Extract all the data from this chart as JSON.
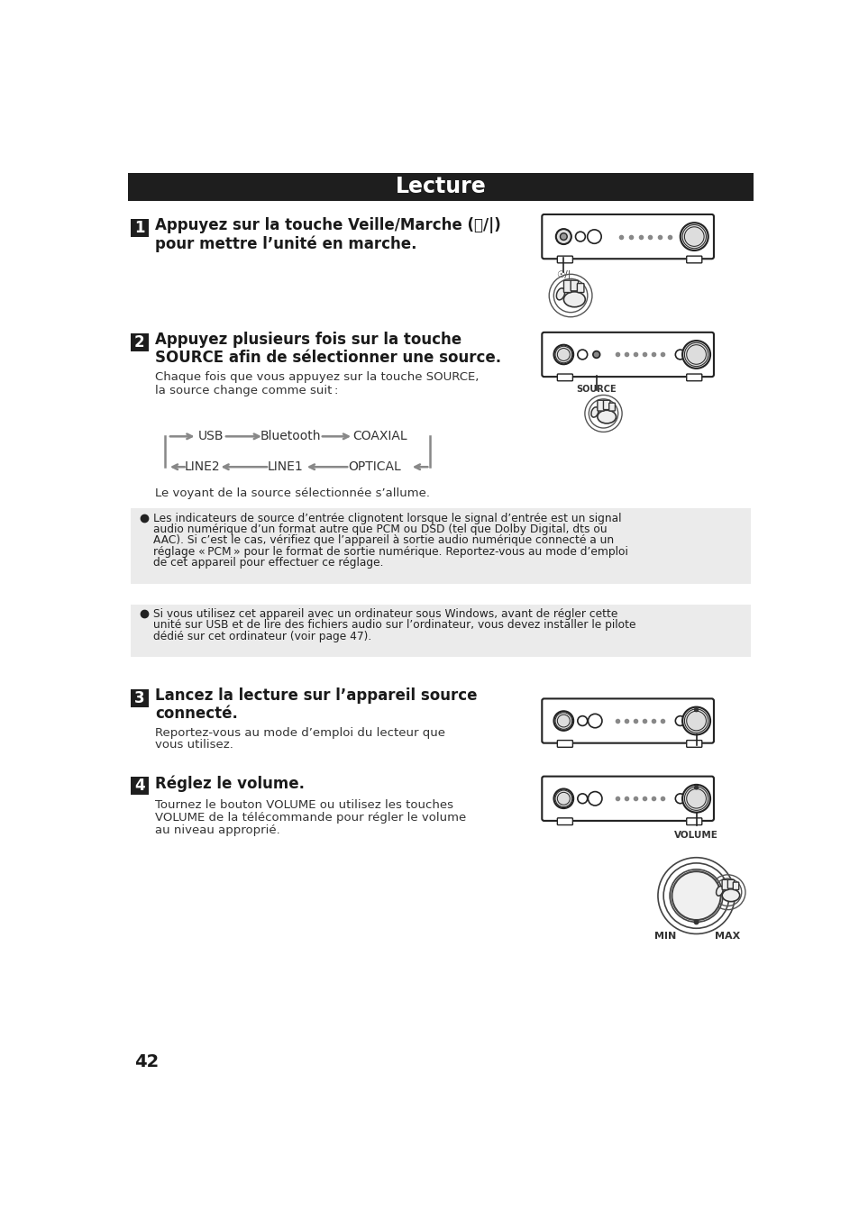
{
  "title": "Lecture",
  "title_bg": "#1e1e1e",
  "title_color": "#ffffff",
  "page_bg": "#ffffff",
  "text_color": "#1a1a1a",
  "step1_heading1": "Appuyez sur la touche Veille/Marche (⏻/|)",
  "step1_heading2": "pour mettre l’unité en marche.",
  "step2_heading1": "Appuyez plusieurs fois sur la touche",
  "step2_heading2": "SOURCE afin de sélectionner une source.",
  "step2_sub1": "Chaque fois que vous appuyez sur la touche SOURCE,",
  "step2_sub2": "la source change comme suit :",
  "flow_row1": [
    "USB",
    "Bluetooth",
    "COAXIAL"
  ],
  "flow_row2": [
    "LINE2",
    "LINE1",
    "OPTICAL"
  ],
  "step2_note": "Le voyant de la source sélectionnée s’allume.",
  "bullet1_lines": [
    "Les indicateurs de source d’entrée clignotent lorsque le signal d’entrée est un signal",
    "audio numérique d’un format autre que PCM ou DSD (tel que Dolby Digital, dts ou",
    "AAC). Si c’est le cas, vérifiez que l’appareil à sortie audio numérique connecté a un",
    "réglage « PCM » pour le format de sortie numérique. Reportez-vous au mode d’emploi",
    "de cet appareil pour effectuer ce réglage."
  ],
  "bullet2_lines": [
    "Si vous utilisez cet appareil avec un ordinateur sous Windows, avant de régler cette",
    "unité sur USB et de lire des fichiers audio sur l’ordinateur, vous devez installer le pilote",
    "dédié sur cet ordinateur (voir page 47)."
  ],
  "step3_heading1": "Lancez la lecture sur l’appareil source",
  "step3_heading2": "connecté.",
  "step3_sub1": "Reportez-vous au mode d’emploi du lecteur que",
  "step3_sub2": "vous utilisez.",
  "step4_heading": "Réglez le volume.",
  "step4_sub1": "Tournez le bouton VOLUME ou utilisez les touches",
  "step4_sub2": "VOLUME de la télécommande pour régler le volume",
  "step4_sub3": "au niveau approprié.",
  "page_number": "42",
  "bullet_bg": "#ebebeb",
  "arrow_color": "#888888",
  "device_edge": "#222222",
  "device_face": "#ffffff"
}
